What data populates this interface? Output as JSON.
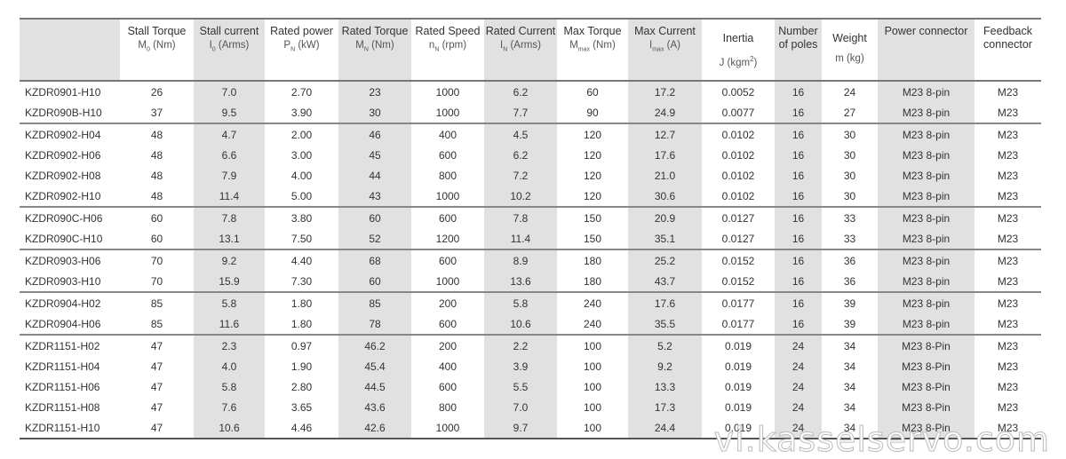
{
  "columns": [
    {
      "title": "",
      "unit": ""
    },
    {
      "title": "Stall Torque",
      "unit": "M0 (Nm)",
      "sym": "M",
      "sub": "0",
      "rest": " (Nm)"
    },
    {
      "title": "Stall current",
      "unit": "I0 (Arms)",
      "sym": "I",
      "sub": "0",
      "rest": " (Arms)"
    },
    {
      "title": "Rated power",
      "unit": "PN (kW)",
      "sym": "P",
      "sub": "N",
      "rest": " (kW)"
    },
    {
      "title": "Rated Torque",
      "unit": "MN (Nm)",
      "sym": "M",
      "sub": "N",
      "rest": " (Nm)"
    },
    {
      "title": "Rated Speed",
      "unit": "nN (rpm)",
      "sym": "n",
      "sub": "N",
      "rest": " (rpm)"
    },
    {
      "title": "Rated Current",
      "unit": "IN (Arms)",
      "sym": "I",
      "sub": "N",
      "rest": " (Arms)"
    },
    {
      "title": "Max Torque",
      "unit": "Mmax (Nm)",
      "sym": "M",
      "sub": "max",
      "rest": " (Nm)"
    },
    {
      "title": "Max Current",
      "unit": "Imax (A)",
      "sym": "I",
      "sub": "max",
      "rest": " (A)"
    },
    {
      "title": "Inertia",
      "unit": "J (kgm2)"
    },
    {
      "title": "Number of poles",
      "unit": ""
    },
    {
      "title": "Weight",
      "unit": "m (kg)"
    },
    {
      "title": "Power connector",
      "unit": ""
    },
    {
      "title": "Feedback connector",
      "unit": ""
    }
  ],
  "rows": [
    [
      "KZDR0901-H10",
      "26",
      "7.0",
      "2.70",
      "23",
      "1000",
      "6.2",
      "60",
      "17.2",
      "0.0052",
      "16",
      "24",
      "M23 8-pin",
      "M23"
    ],
    [
      "KZDR090B-H10",
      "37",
      "9.5",
      "3.90",
      "30",
      "1000",
      "7.7",
      "90",
      "24.9",
      "0.0077",
      "16",
      "27",
      "M23 8-pin",
      "M23"
    ],
    [
      "KZDR0902-H04",
      "48",
      "4.7",
      "2.00",
      "46",
      "400",
      "4.5",
      "120",
      "12.7",
      "0.0102",
      "16",
      "30",
      "M23 8-pin",
      "M23"
    ],
    [
      "KZDR0902-H06",
      "48",
      "6.6",
      "3.00",
      "45",
      "600",
      "6.2",
      "120",
      "17.6",
      "0.0102",
      "16",
      "30",
      "M23 8-pin",
      "M23"
    ],
    [
      "KZDR0902-H08",
      "48",
      "7.9",
      "4.00",
      "44",
      "800",
      "7.2",
      "120",
      "21.0",
      "0.0102",
      "16",
      "30",
      "M23 8-pin",
      "M23"
    ],
    [
      "KZDR0902-H10",
      "48",
      "11.4",
      "5.00",
      "43",
      "1000",
      "10.2",
      "120",
      "30.6",
      "0.0102",
      "16",
      "30",
      "M23 8-pin",
      "M23"
    ],
    [
      "KZDR090C-H06",
      "60",
      "7.8",
      "3.80",
      "60",
      "600",
      "7.8",
      "150",
      "20.9",
      "0.0127",
      "16",
      "33",
      "M23 8-pin",
      "M23"
    ],
    [
      "KZDR090C-H10",
      "60",
      "13.1",
      "7.50",
      "52",
      "1200",
      "11.4",
      "150",
      "35.1",
      "0.0127",
      "16",
      "33",
      "M23 8-pin",
      "M23"
    ],
    [
      "KZDR0903-H06",
      "70",
      "9.2",
      "4.40",
      "68",
      "600",
      "8.9",
      "180",
      "25.2",
      "0.0152",
      "16",
      "36",
      "M23 8-pin",
      "M23"
    ],
    [
      "KZDR0903-H10",
      "70",
      "15.9",
      "7.30",
      "60",
      "1000",
      "13.6",
      "180",
      "43.7",
      "0.0152",
      "16",
      "36",
      "M23 8-pin",
      "M23"
    ],
    [
      "KZDR0904-H02",
      "85",
      "5.8",
      "1.80",
      "85",
      "200",
      "5.8",
      "240",
      "17.6",
      "0.0177",
      "16",
      "39",
      "M23 8-pin",
      "M23"
    ],
    [
      "KZDR0904-H06",
      "85",
      "11.6",
      "1.80",
      "78",
      "600",
      "10.6",
      "240",
      "35.5",
      "0.0177",
      "16",
      "39",
      "M23 8-pin",
      "M23"
    ],
    [
      "KZDR1151-H02",
      "47",
      "2.3",
      "0.97",
      "46.2",
      "200",
      "2.2",
      "100",
      "5.2",
      "0.019",
      "24",
      "34",
      "M23 8-Pin",
      "M23"
    ],
    [
      "KZDR1151-H04",
      "47",
      "4.0",
      "1.90",
      "45.4",
      "400",
      "3.9",
      "100",
      "9.2",
      "0.019",
      "24",
      "34",
      "M23 8-Pin",
      "M23"
    ],
    [
      "KZDR1151-H06",
      "47",
      "5.8",
      "2.80",
      "44.5",
      "600",
      "5.5",
      "100",
      "13.3",
      "0.019",
      "24",
      "34",
      "M23 8-Pin",
      "M23"
    ],
    [
      "KZDR1151-H08",
      "47",
      "7.6",
      "3.65",
      "43.6",
      "800",
      "7.0",
      "100",
      "17.3",
      "0.019",
      "24",
      "34",
      "M23 8-Pin",
      "M23"
    ],
    [
      "KZDR1151-H10",
      "47",
      "10.6",
      "4.46",
      "42.6",
      "1000",
      "9.7",
      "100",
      "24.4",
      "0.019",
      "24",
      "34",
      "M23 8-Pin",
      "M23"
    ]
  ],
  "watermark": "vi.kasselservo.com",
  "colors": {
    "shaded_column": "#e1e1e2",
    "rule": "#777777"
  }
}
